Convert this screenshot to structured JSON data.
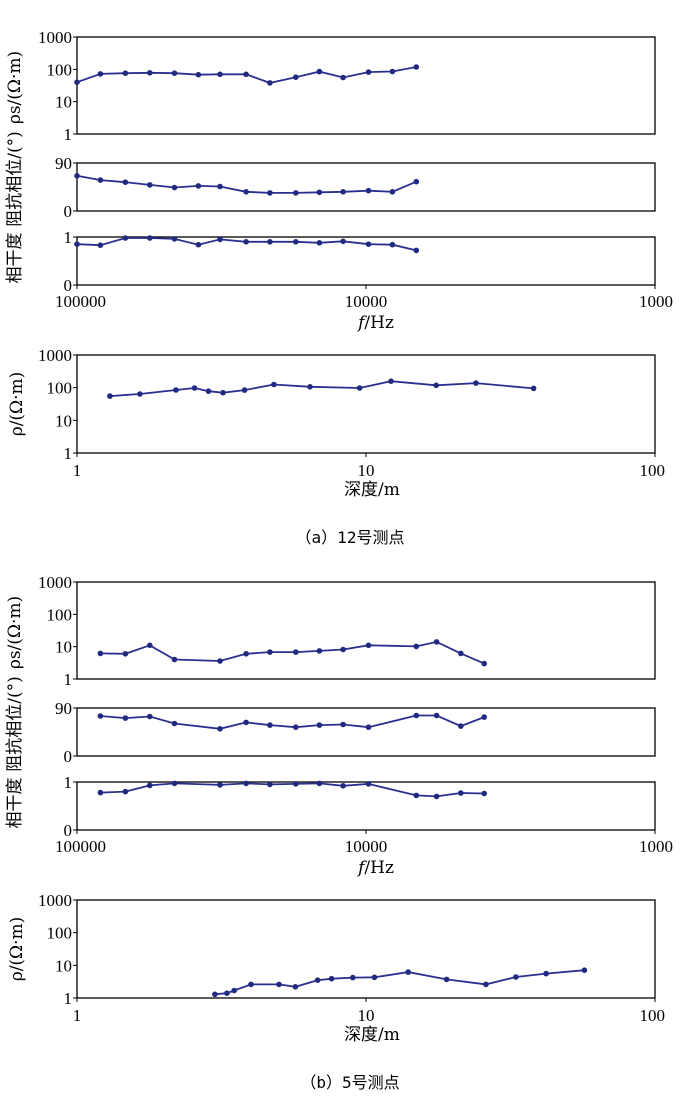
{
  "panel_a": {
    "caption": "（a）12号测点",
    "rho_s": {
      "ylabel": "ρs/(Ω·m)",
      "xscale": "log",
      "yscale": "log",
      "xlim": [
        100000,
        1000
      ],
      "ylim": [
        1,
        1000
      ],
      "yticks": [
        "1",
        "10",
        "100",
        "1000"
      ],
      "points": [
        [
          100000,
          40
        ],
        [
          83000,
          72
        ],
        [
          68000,
          76
        ],
        [
          56000,
          78
        ],
        [
          46000,
          76
        ],
        [
          38000,
          68
        ],
        [
          32000,
          70
        ],
        [
          26000,
          70
        ],
        [
          21500,
          38
        ],
        [
          17500,
          57
        ],
        [
          14500,
          85
        ],
        [
          12000,
          56
        ],
        [
          9800,
          82
        ],
        [
          8100,
          86
        ],
        [
          6700,
          118
        ]
      ]
    },
    "phase": {
      "ylabel": "阻抗相位/(°)",
      "ylim": [
        0,
        90
      ],
      "yticks": [
        "0",
        "90"
      ],
      "points": [
        [
          100000,
          66
        ],
        [
          83000,
          58
        ],
        [
          68000,
          54
        ],
        [
          56000,
          49
        ],
        [
          46000,
          44
        ],
        [
          38000,
          47
        ],
        [
          32000,
          46
        ],
        [
          26000,
          36
        ],
        [
          21500,
          34
        ],
        [
          17500,
          34
        ],
        [
          14500,
          35
        ],
        [
          12000,
          36
        ],
        [
          9800,
          38
        ],
        [
          8100,
          36
        ],
        [
          6700,
          55
        ]
      ]
    },
    "coherence": {
      "ylabel": "相干度",
      "ylim": [
        0,
        1
      ],
      "yticks": [
        "0",
        "1"
      ],
      "xticks": [
        "100000",
        "10000",
        "1000"
      ],
      "xlabel_italic": "f",
      "xlabel_unit": "/Hz",
      "points": [
        [
          100000,
          0.85
        ],
        [
          83000,
          0.83
        ],
        [
          68000,
          0.98
        ],
        [
          56000,
          0.98
        ],
        [
          46000,
          0.96
        ],
        [
          38000,
          0.84
        ],
        [
          32000,
          0.95
        ],
        [
          26000,
          0.9
        ],
        [
          21500,
          0.9
        ],
        [
          17500,
          0.9
        ],
        [
          14500,
          0.88
        ],
        [
          12000,
          0.91
        ],
        [
          9800,
          0.85
        ],
        [
          8100,
          0.84
        ],
        [
          6700,
          0.72
        ]
      ]
    },
    "depth": {
      "ylabel": "ρ/(Ω·m)",
      "xlabel": "深度/m",
      "xlim": [
        1,
        100
      ],
      "ylim": [
        1,
        1000
      ],
      "xticks": [
        "1",
        "10",
        "100"
      ],
      "yticks": [
        "1",
        "10",
        "100",
        "1000"
      ],
      "points": [
        [
          1.3,
          55
        ],
        [
          1.65,
          64
        ],
        [
          2.2,
          85
        ],
        [
          2.55,
          98
        ],
        [
          2.85,
          78
        ],
        [
          3.2,
          70
        ],
        [
          3.8,
          84
        ],
        [
          4.8,
          125
        ],
        [
          6.4,
          106
        ],
        [
          9.5,
          98
        ],
        [
          12.2,
          158
        ],
        [
          17.5,
          118
        ],
        [
          24,
          138
        ],
        [
          38,
          95
        ]
      ]
    }
  },
  "panel_b": {
    "caption": "（b）5号测点",
    "rho_s": {
      "ylabel": "ρs/(Ω·m)",
      "xscale": "log",
      "yscale": "log",
      "xlim": [
        100000,
        1000
      ],
      "ylim": [
        1,
        1000
      ],
      "yticks": [
        "1",
        "10",
        "100",
        "1000"
      ],
      "points": [
        [
          83000,
          6.2
        ],
        [
          68000,
          6.0
        ],
        [
          56000,
          11
        ],
        [
          46000,
          4.0
        ],
        [
          32000,
          3.6
        ],
        [
          26000,
          6.0
        ],
        [
          21500,
          6.8
        ],
        [
          17500,
          6.8
        ],
        [
          14500,
          7.4
        ],
        [
          12000,
          8.2
        ],
        [
          9800,
          11
        ],
        [
          6700,
          10.2
        ],
        [
          5700,
          14
        ],
        [
          4700,
          6.2
        ],
        [
          3900,
          3.0
        ]
      ]
    },
    "phase": {
      "ylabel": "阻抗相位/(°)",
      "ylim": [
        0,
        90
      ],
      "yticks": [
        "0",
        "90"
      ],
      "points": [
        [
          83000,
          75
        ],
        [
          68000,
          71
        ],
        [
          56000,
          74
        ],
        [
          46000,
          61
        ],
        [
          32000,
          51
        ],
        [
          26000,
          63
        ],
        [
          21500,
          58
        ],
        [
          17500,
          54
        ],
        [
          14500,
          58
        ],
        [
          12000,
          59
        ],
        [
          9800,
          54
        ],
        [
          6700,
          76
        ],
        [
          5700,
          76
        ],
        [
          4700,
          56
        ],
        [
          3900,
          73
        ]
      ]
    },
    "coherence": {
      "ylabel": "相干度",
      "ylim": [
        0,
        1
      ],
      "yticks": [
        "0",
        "1"
      ],
      "xticks": [
        "100000",
        "10000",
        "1000"
      ],
      "xlabel_italic": "f",
      "xlabel_unit": "/Hz",
      "points": [
        [
          83000,
          0.78
        ],
        [
          68000,
          0.8
        ],
        [
          56000,
          0.93
        ],
        [
          46000,
          0.97
        ],
        [
          32000,
          0.94
        ],
        [
          26000,
          0.97
        ],
        [
          21500,
          0.95
        ],
        [
          17500,
          0.96
        ],
        [
          14500,
          0.97
        ],
        [
          12000,
          0.92
        ],
        [
          9800,
          0.96
        ],
        [
          6700,
          0.72
        ],
        [
          5700,
          0.7
        ],
        [
          4700,
          0.77
        ],
        [
          3900,
          0.76
        ]
      ]
    },
    "depth": {
      "ylabel": "ρ/(Ω·m)",
      "xlabel": "深度/m",
      "xlim": [
        1,
        100
      ],
      "ylim": [
        1,
        1000
      ],
      "xticks": [
        "1",
        "10",
        "100"
      ],
      "yticks": [
        "1",
        "10",
        "100",
        "1000"
      ],
      "points": [
        [
          3.0,
          1.3
        ],
        [
          3.3,
          1.4
        ],
        [
          3.5,
          1.7
        ],
        [
          4.0,
          2.6
        ],
        [
          5.0,
          2.6
        ],
        [
          5.7,
          2.2
        ],
        [
          6.8,
          3.5
        ],
        [
          7.6,
          3.9
        ],
        [
          9.0,
          4.2
        ],
        [
          10.7,
          4.3
        ],
        [
          14,
          6.2
        ],
        [
          19,
          3.7
        ],
        [
          26,
          2.6
        ],
        [
          33,
          4.4
        ],
        [
          42,
          5.6
        ],
        [
          57,
          7.1
        ]
      ]
    }
  },
  "style": {
    "line_color": "#2b2f8f",
    "marker_color": "#1f2a80",
    "axis_color": "#000000"
  }
}
